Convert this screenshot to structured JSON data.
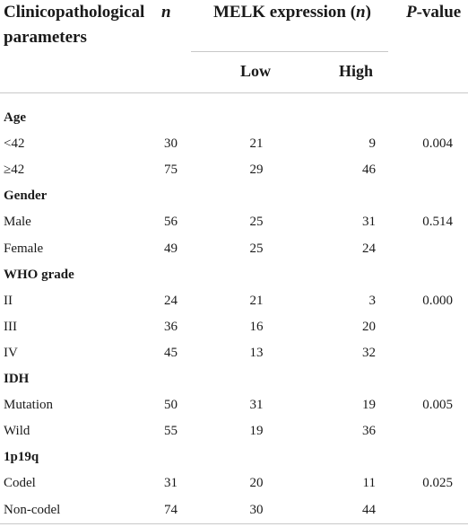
{
  "header": {
    "param_line1": "Clinicopathological",
    "param_line2": "parameters",
    "n_label": "n",
    "melk_label": "MELK expression (",
    "melk_n": "n",
    "melk_close": ")",
    "low": "Low",
    "high": "High",
    "p_label_italic": "P",
    "p_label_rest": "-value"
  },
  "groups": [
    {
      "title": "Age",
      "rows": [
        {
          "label": "<42",
          "n": "30",
          "low": "21",
          "high": "9",
          "p": "0.004"
        },
        {
          "label": "≥42",
          "n": "75",
          "low": "29",
          "high": "46",
          "p": ""
        }
      ]
    },
    {
      "title": "Gender",
      "rows": [
        {
          "label": "Male",
          "n": "56",
          "low": "25",
          "high": "31",
          "p": "0.514"
        },
        {
          "label": "Female",
          "n": "49",
          "low": "25",
          "high": "24",
          "p": ""
        }
      ]
    },
    {
      "title": "WHO grade",
      "rows": [
        {
          "label": "II",
          "n": "24",
          "low": "21",
          "high": "3",
          "p": "0.000"
        },
        {
          "label": "III",
          "n": "36",
          "low": "16",
          "high": "20",
          "p": ""
        },
        {
          "label": "IV",
          "n": "45",
          "low": "13",
          "high": "32",
          "p": ""
        }
      ]
    },
    {
      "title": "IDH",
      "rows": [
        {
          "label": "Mutation",
          "n": "50",
          "low": "31",
          "high": "19",
          "p": "0.005"
        },
        {
          "label": "Wild",
          "n": "55",
          "low": "19",
          "high": "36",
          "p": ""
        }
      ]
    },
    {
      "title": "1p19q",
      "rows": [
        {
          "label": "Codel",
          "n": "31",
          "low": "20",
          "high": "11",
          "p": "0.025"
        },
        {
          "label": "Non-codel",
          "n": "74",
          "low": "30",
          "high": "44",
          "p": ""
        }
      ]
    }
  ]
}
